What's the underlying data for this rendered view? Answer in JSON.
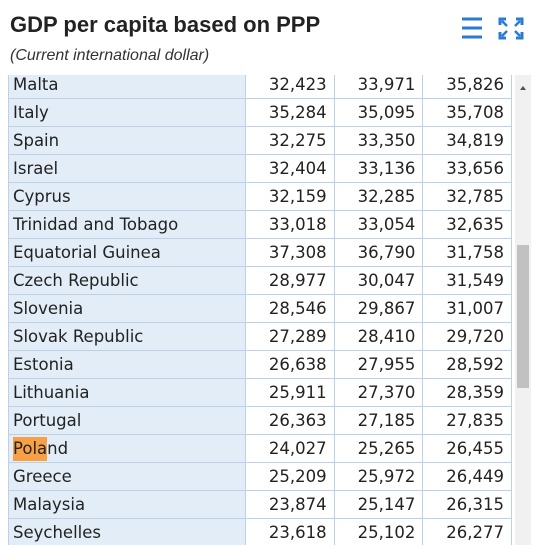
{
  "header": {
    "title": "GDP per capita based on PPP",
    "subtitle": "(Current international dollar)"
  },
  "table": {
    "highlight": {
      "row": 13,
      "text": "Pola"
    },
    "rows": [
      [
        "Malta",
        "32,423",
        "33,971",
        "35,826"
      ],
      [
        "Italy",
        "35,284",
        "35,095",
        "35,708"
      ],
      [
        "Spain",
        "32,275",
        "33,350",
        "34,819"
      ],
      [
        "Israel",
        "32,404",
        "33,136",
        "33,656"
      ],
      [
        "Cyprus",
        "32,159",
        "32,285",
        "32,785"
      ],
      [
        "Trinidad and Tobago",
        "33,018",
        "33,054",
        "32,635"
      ],
      [
        "Equatorial Guinea",
        "37,308",
        "36,790",
        "31,758"
      ],
      [
        "Czech Republic",
        "28,977",
        "30,047",
        "31,549"
      ],
      [
        "Slovenia",
        "28,546",
        "29,867",
        "31,007"
      ],
      [
        "Slovak Republic",
        "27,289",
        "28,410",
        "29,720"
      ],
      [
        "Estonia",
        "26,638",
        "27,955",
        "28,592"
      ],
      [
        "Lithuania",
        "25,911",
        "27,370",
        "28,359"
      ],
      [
        "Portugal",
        "26,363",
        "27,185",
        "27,835"
      ],
      [
        "Poland",
        "24,027",
        "25,265",
        "26,455"
      ],
      [
        "Greece",
        "25,209",
        "25,972",
        "26,449"
      ],
      [
        "Malaysia",
        "23,874",
        "25,147",
        "26,315"
      ],
      [
        "Seychelles",
        "23,618",
        "25,102",
        "26,277"
      ]
    ]
  }
}
